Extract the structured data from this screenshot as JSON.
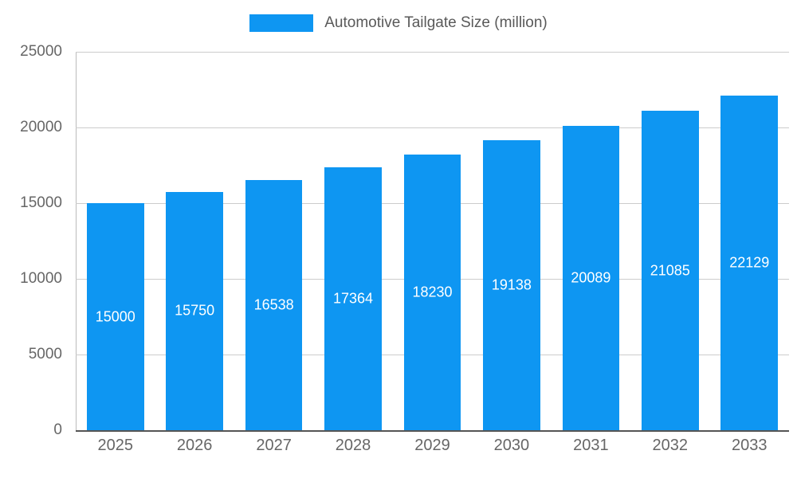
{
  "chart_data": {
    "type": "bar",
    "title": "Automotive Tailgate Size (million)",
    "categories": [
      "2025",
      "2026",
      "2027",
      "2028",
      "2029",
      "2030",
      "2031",
      "2032",
      "2033"
    ],
    "values": [
      15000,
      15750,
      16538,
      17364,
      18230,
      19138,
      20089,
      21085,
      22129
    ],
    "ylim": [
      0,
      25000
    ],
    "yticks": [
      0,
      5000,
      10000,
      15000,
      20000,
      25000
    ],
    "grid": true,
    "legend_position": "top",
    "bar_color": "#0e96f2",
    "value_label_color": "#ffffff",
    "axis_text_color": "#666666",
    "gridline_color": "#cccccc"
  }
}
